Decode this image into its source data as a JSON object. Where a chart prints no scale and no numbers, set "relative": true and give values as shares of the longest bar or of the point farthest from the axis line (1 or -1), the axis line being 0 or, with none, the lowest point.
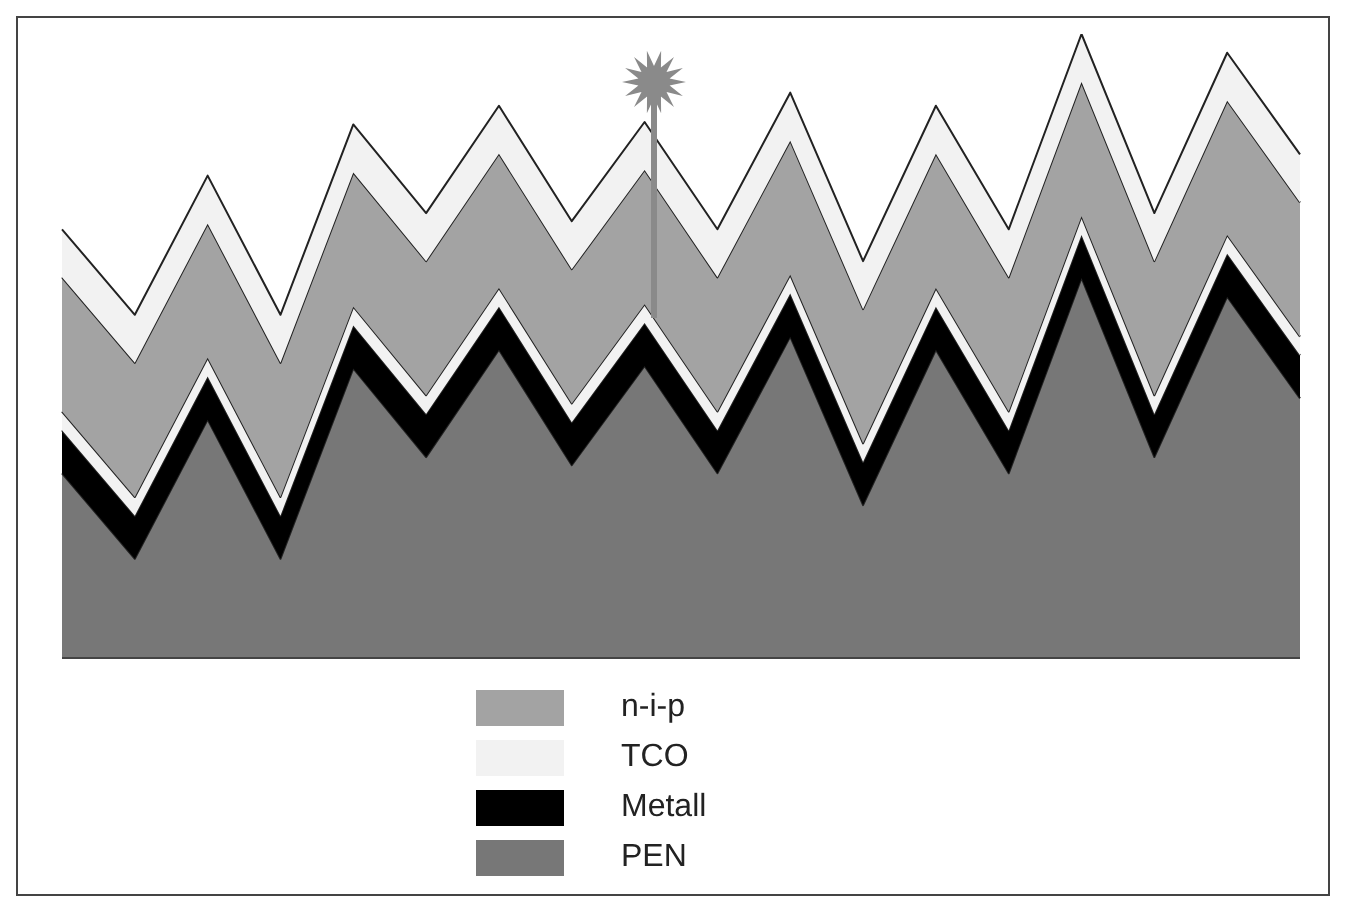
{
  "chart_data": {
    "type": "area",
    "stacked": true,
    "relative": true,
    "legend": "bottom",
    "categories": [
      null,
      null,
      null,
      null,
      null,
      null,
      null,
      null,
      null,
      null,
      null,
      null,
      null,
      null,
      null,
      null,
      null,
      null
    ],
    "series": [
      {
        "name": "PEN",
        "color": "#777777",
        "values": [
          0.296,
          0.159,
          0.382,
          0.159,
          0.464,
          0.322,
          0.494,
          0.309,
          0.468,
          0.296,
          0.515,
          0.245,
          0.494,
          0.296,
          0.609,
          0.322,
          0.579,
          0.416
        ]
      },
      {
        "name": "Metall",
        "color": "#000000",
        "values": [
          0.069,
          0.069,
          0.069,
          0.069,
          0.069,
          0.069,
          0.069,
          0.069,
          0.069,
          0.069,
          0.069,
          0.069,
          0.069,
          0.069,
          0.069,
          0.069,
          0.069,
          0.069
        ]
      },
      {
        "name": "TCO",
        "color": "#f2f2f2",
        "values": [
          0.03,
          0.03,
          0.03,
          0.03,
          0.03,
          0.03,
          0.03,
          0.03,
          0.03,
          0.03,
          0.03,
          0.03,
          0.03,
          0.03,
          0.03,
          0.03,
          0.03,
          0.03
        ]
      },
      {
        "name": "n-i-p",
        "color": "#a3a3a3",
        "values": [
          0.215,
          0.215,
          0.215,
          0.215,
          0.215,
          0.215,
          0.215,
          0.215,
          0.215,
          0.215,
          0.215,
          0.215,
          0.215,
          0.215,
          0.215,
          0.215,
          0.215,
          0.215
        ]
      },
      {
        "color": "#f2f2f2",
        "values": [
          0.077,
          0.077,
          0.077,
          0.077,
          0.077,
          0.077,
          0.077,
          0.077,
          0.077,
          0.077,
          0.077,
          0.077,
          0.077,
          0.077,
          0.077,
          0.077,
          0.077,
          0.077
        ]
      }
    ]
  }
}
